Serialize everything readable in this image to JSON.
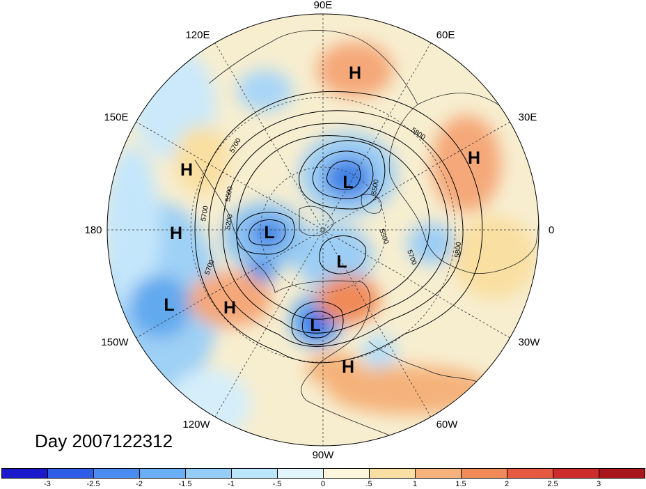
{
  "title": "Day 2007122312",
  "longitude_labels": [
    "90E",
    "60E",
    "30E",
    "0",
    "30W",
    "60W",
    "90W",
    "120W",
    "150W",
    "180",
    "150E",
    "120E"
  ],
  "pressure_centers": [
    {
      "type": "H",
      "label": "H",
      "region": "northern Russia"
    },
    {
      "type": "H",
      "label": "H",
      "region": "Europe / Ukraine"
    },
    {
      "type": "H",
      "label": "H",
      "region": "western Pacific"
    },
    {
      "type": "H",
      "label": "H",
      "region": "central Pacific"
    },
    {
      "type": "H",
      "label": "H",
      "region": "Alaska / NE Pacific"
    },
    {
      "type": "H",
      "label": "H",
      "region": "Gulf of Mexico / Caribbean"
    },
    {
      "type": "L",
      "label": "L",
      "region": "Kara Sea"
    },
    {
      "type": "L",
      "label": "L",
      "region": "Bering Strait"
    },
    {
      "type": "L",
      "label": "L",
      "region": "Canadian Arctic"
    },
    {
      "type": "L",
      "label": "L",
      "region": "North Pacific"
    },
    {
      "type": "L",
      "label": "L",
      "region": "Great Lakes"
    }
  ],
  "contour_labels": [
    "5200",
    "5500",
    "5500",
    "5500",
    "5700",
    "5700",
    "5700",
    "5700",
    "5800",
    "5800"
  ],
  "colorbar": {
    "tick_labels": [
      "-3",
      "-2.5",
      "-2",
      "-1.5",
      "-1",
      "-.5",
      "0",
      ".5",
      "1",
      "1.5",
      "2",
      "2.5",
      "3"
    ],
    "colors": [
      "#1a1acc",
      "#2e5ee8",
      "#4a8cf0",
      "#6aaff5",
      "#93cdf8",
      "#bce6fb",
      "#e2f5fd",
      "#fbf6dc",
      "#f9dfa1",
      "#f5b27a",
      "#f08a58",
      "#e55a40",
      "#cd2c2c",
      "#a8151a"
    ]
  }
}
